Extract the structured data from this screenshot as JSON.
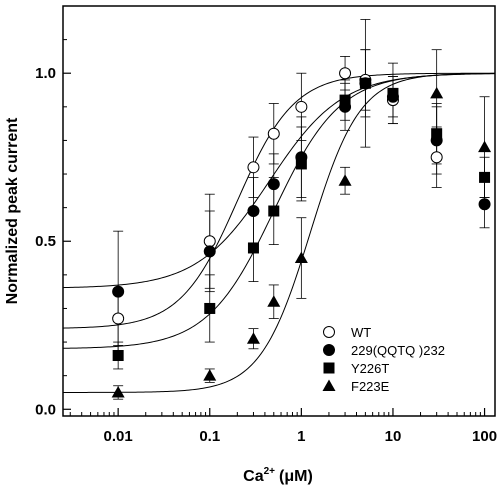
{
  "chart_data": {
    "type": "scatter",
    "xlabel": "Ca",
    "xlabel_sup": "2+",
    "xlabel_unit": "(μM)",
    "ylabel": "Normalized peak current",
    "xscale": "log",
    "xlim": [
      0.0025,
      130
    ],
    "ylim": [
      -0.02,
      1.2
    ],
    "x_ticks": [
      0.01,
      0.1,
      1,
      10,
      100
    ],
    "x_tick_labels": [
      "0.01",
      "0.1",
      "1",
      "10",
      "100"
    ],
    "y_ticks": [
      0.0,
      0.5,
      1.0
    ],
    "y_tick_labels": [
      "0.0",
      "0.5",
      "1.0"
    ],
    "legend_position": "bottom-right",
    "series": [
      {
        "name": "WT",
        "marker": "open-circle",
        "x": [
          0.01,
          0.1,
          0.3,
          0.5,
          1,
          3,
          5,
          10,
          30
        ],
        "y": [
          0.27,
          0.5,
          0.72,
          0.82,
          0.9,
          1.0,
          0.98,
          0.92,
          0.75
        ],
        "err": [
          0.08,
          0.14,
          0.09,
          0.09,
          0.1,
          0.05,
          0.09,
          0.07,
          0.09
        ],
        "fit": {
          "bottom": 0.24,
          "top": 1.0,
          "ec50": 0.2,
          "hill": 1.4
        }
      },
      {
        "name": "229(QQTQ )232",
        "marker": "filled-circle",
        "x": [
          0.01,
          0.1,
          0.3,
          0.5,
          1,
          3,
          5,
          10,
          30,
          100
        ],
        "y": [
          0.35,
          0.47,
          0.59,
          0.67,
          0.75,
          0.9,
          0.97,
          0.93,
          0.8,
          0.61
        ],
        "err": [
          0.18,
          0.12,
          0.1,
          0.09,
          0.12,
          0.07,
          0.1,
          0.06,
          0.1,
          0.07
        ],
        "fit": {
          "bottom": 0.36,
          "top": 1.0,
          "ec50": 0.45,
          "hill": 1.1
        }
      },
      {
        "name": "Y226T",
        "marker": "filled-square",
        "x": [
          0.01,
          0.1,
          0.3,
          0.5,
          1,
          3,
          5,
          10,
          30,
          100
        ],
        "y": [
          0.16,
          0.3,
          0.48,
          0.59,
          0.73,
          0.92,
          0.97,
          0.94,
          0.82,
          0.69
        ],
        "err": [
          0.04,
          0.1,
          0.1,
          0.1,
          0.11,
          0.06,
          0.19,
          0.09,
          0.09,
          0.06
        ],
        "fit": {
          "bottom": 0.18,
          "top": 1.0,
          "ec50": 0.5,
          "hill": 1.2
        }
      },
      {
        "name": "F223E",
        "marker": "filled-triangle",
        "x": [
          0.01,
          0.1,
          0.3,
          0.5,
          1,
          3,
          30,
          100
        ],
        "y": [
          0.05,
          0.1,
          0.21,
          0.32,
          0.45,
          0.68,
          0.94,
          0.78
        ],
        "err": [
          0.02,
          0.02,
          0.03,
          0.05,
          0.12,
          0.04,
          0.13,
          0.15
        ],
        "fit": {
          "bottom": 0.05,
          "top": 1.0,
          "ec50": 1.25,
          "hill": 1.6
        }
      }
    ]
  }
}
